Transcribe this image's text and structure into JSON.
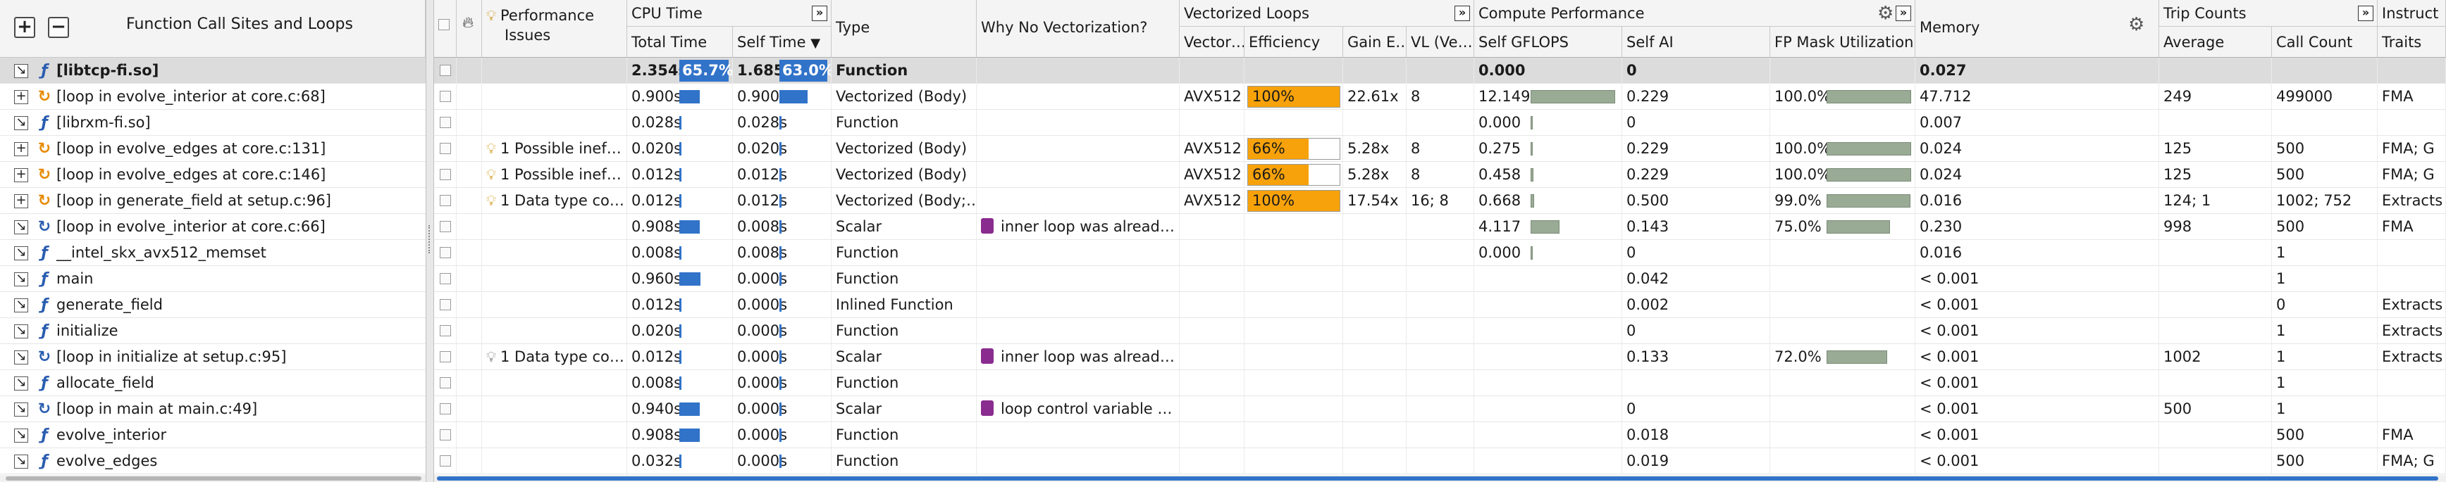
{
  "left_pane": {
    "title": "Function Call Sites and Loops",
    "expand_all": "+",
    "collapse_all": "−",
    "rows": [
      {
        "toggle": "↘",
        "icon": "function",
        "name": "[libtcp-fi.so]",
        "selected": true
      },
      {
        "toggle": "+",
        "icon": "vectorized-loop",
        "name": "[loop in evolve_interior at core.c:68]"
      },
      {
        "toggle": "↘",
        "icon": "function",
        "name": "[librxm-fi.so]"
      },
      {
        "toggle": "+",
        "icon": "vectorized-loop",
        "name": "[loop in evolve_edges at core.c:131]"
      },
      {
        "toggle": "+",
        "icon": "vectorized-loop",
        "name": "[loop in evolve_edges at core.c:146]"
      },
      {
        "toggle": "+",
        "icon": "vectorized-loop",
        "name": "[loop in generate_field at setup.c:96]"
      },
      {
        "toggle": "↘",
        "icon": "scalar-loop",
        "name": "[loop in evolve_interior at core.c:66]"
      },
      {
        "toggle": "↘",
        "icon": "function",
        "name": "__intel_skx_avx512_memset"
      },
      {
        "toggle": "↘",
        "icon": "function",
        "name": "main"
      },
      {
        "toggle": "↘",
        "icon": "function",
        "name": "generate_field"
      },
      {
        "toggle": "↘",
        "icon": "function",
        "name": "initialize"
      },
      {
        "toggle": "↘",
        "icon": "scalar-loop",
        "name": "[loop in initialize at setup.c:95]"
      },
      {
        "toggle": "↘",
        "icon": "function",
        "name": "allocate_field"
      },
      {
        "toggle": "↘",
        "icon": "scalar-loop",
        "name": "[loop in main at main.c:49]"
      },
      {
        "toggle": "↘",
        "icon": "function",
        "name": "evolve_interior"
      },
      {
        "toggle": "↘",
        "icon": "function",
        "name": "evolve_edges"
      }
    ]
  },
  "header": {
    "perf_issues": "Performance Issues",
    "perf_issues_l1": "Performance",
    "perf_issues_l2": "Issues",
    "cpu_time": "CPU Time",
    "total_time": "Total Time",
    "self_time": "Self Time",
    "type": "Type",
    "why_no_vec": "Why No Vectorization?",
    "vectorized_loops": "Vectorized Loops",
    "vector_isa": "Vector…",
    "efficiency": "Efficiency",
    "gain": "Gain E…",
    "vl": "VL (Ve…",
    "compute_perf": "Compute Performance",
    "self_gflops": "Self GFLOPS",
    "self_ai": "Self AI",
    "fp_mask": "FP Mask Utilization",
    "memory": "Memory",
    "trip_counts": "Trip Counts",
    "average": "Average",
    "call_count": "Call Count",
    "instruct": "Instruct",
    "traits": "Traits",
    "expand_glyph": "»",
    "sort_glyph": "▼"
  },
  "rows": [
    {
      "perf": "",
      "perf_icon": "",
      "total": "2.354s",
      "total_pct": "65.7%",
      "self": "1.685s",
      "self_pct": "63.0%",
      "type": "Function",
      "why": "",
      "isa": "",
      "eff": "",
      "eff_frac": 0,
      "gain": "",
      "vl": "",
      "gflops": "0.000",
      "gflops_frac": 0,
      "ai": "0",
      "fpmask": "",
      "fpmask_frac": 0,
      "mem": "0.027",
      "avg": "",
      "calls": "",
      "traits": ""
    },
    {
      "perf": "",
      "perf_icon": "",
      "total": "0.900s",
      "total_frac": 0.38,
      "self": "0.900s",
      "self_frac": 0.53,
      "type": "Vectorized (Body)",
      "why": "",
      "isa": "AVX512",
      "eff": "100%",
      "eff_frac": 1.0,
      "gain": "22.61x",
      "vl": "8",
      "gflops": "12.149",
      "gflops_frac": 1.0,
      "ai": "0.229",
      "fpmask": "100.0%",
      "fpmask_frac": 1.0,
      "mem": "47.712",
      "avg": "249",
      "calls": "499000",
      "traits": "FMA"
    },
    {
      "perf": "",
      "perf_icon": "",
      "total": "0.028s",
      "total_frac": 0.01,
      "self": "0.028s",
      "self_frac": 0.02,
      "type": "Function",
      "why": "",
      "isa": "",
      "eff": "",
      "eff_frac": 0,
      "gain": "",
      "vl": "",
      "gflops": "0.000",
      "gflops_frac": 0.01,
      "ai": "0",
      "fpmask": "",
      "fpmask_frac": 0,
      "mem": "0.007",
      "avg": "",
      "calls": "",
      "traits": ""
    },
    {
      "perf": "1 Possible inef…",
      "perf_icon": "bulb",
      "total": "0.020s",
      "total_frac": 0.01,
      "self": "0.020s",
      "self_frac": 0.01,
      "type": "Vectorized (Body)",
      "why": "",
      "isa": "AVX512",
      "eff": "66%",
      "eff_frac": 0.66,
      "gain": "5.28x",
      "vl": "8",
      "gflops": "0.275",
      "gflops_frac": 0.02,
      "ai": "0.229",
      "fpmask": "100.0%",
      "fpmask_frac": 1.0,
      "mem": "0.024",
      "avg": "125",
      "calls": "500",
      "traits": "FMA; G"
    },
    {
      "perf": "1 Possible inef…",
      "perf_icon": "bulb",
      "total": "0.012s",
      "total_frac": 0.01,
      "self": "0.012s",
      "self_frac": 0.01,
      "type": "Vectorized (Body)",
      "why": "",
      "isa": "AVX512",
      "eff": "66%",
      "eff_frac": 0.66,
      "gain": "5.28x",
      "vl": "8",
      "gflops": "0.458",
      "gflops_frac": 0.03,
      "ai": "0.229",
      "fpmask": "100.0%",
      "fpmask_frac": 1.0,
      "mem": "0.024",
      "avg": "125",
      "calls": "500",
      "traits": "FMA; G"
    },
    {
      "perf": "1 Data type co…",
      "perf_icon": "bulb",
      "total": "0.012s",
      "total_frac": 0.01,
      "self": "0.012s",
      "self_frac": 0.01,
      "type": "Vectorized (Body;…",
      "why": "",
      "isa": "AVX512",
      "eff": "100%",
      "eff_frac": 1.0,
      "gain": "17.54x",
      "vl": "16; 8",
      "gflops": "0.668",
      "gflops_frac": 0.04,
      "ai": "0.500",
      "fpmask": "99.0%",
      "fpmask_frac": 0.99,
      "mem": "0.016",
      "avg": "124; 1",
      "calls": "1002; 752",
      "traits": "Extracts"
    },
    {
      "perf": "",
      "perf_icon": "",
      "total": "0.908s",
      "total_frac": 0.38,
      "self": "0.008s",
      "self_frac": 0.01,
      "type": "Scalar",
      "why": "inner loop was alread…",
      "isa": "",
      "eff": "",
      "eff_frac": 0,
      "gain": "",
      "vl": "",
      "gflops": "4.117",
      "gflops_frac": 0.34,
      "ai": "0.143",
      "fpmask": "75.0%",
      "fpmask_frac": 0.75,
      "mem": "0.230",
      "avg": "998",
      "calls": "500",
      "traits": "FMA"
    },
    {
      "perf": "",
      "perf_icon": "",
      "total": "0.008s",
      "total_frac": 0.01,
      "self": "0.008s",
      "self_frac": 0.01,
      "type": "Function",
      "why": "",
      "isa": "",
      "eff": "",
      "eff_frac": 0,
      "gain": "",
      "vl": "",
      "gflops": "0.000",
      "gflops_frac": 0.01,
      "ai": "0",
      "fpmask": "",
      "fpmask_frac": 0,
      "mem": "0.016",
      "avg": "",
      "calls": "1",
      "traits": ""
    },
    {
      "perf": "",
      "perf_icon": "",
      "total": "0.960s",
      "total_frac": 0.4,
      "self": "0.000s",
      "self_frac": 0.01,
      "type": "Function",
      "why": "",
      "isa": "",
      "eff": "",
      "eff_frac": 0,
      "gain": "",
      "vl": "",
      "gflops": "",
      "gflops_frac": 0,
      "ai": "0.042",
      "fpmask": "",
      "fpmask_frac": 0,
      "mem": "< 0.001",
      "avg": "",
      "calls": "1",
      "traits": ""
    },
    {
      "perf": "",
      "perf_icon": "",
      "total": "0.012s",
      "total_frac": 0.01,
      "self": "0.000s",
      "self_frac": 0.01,
      "type": "Inlined Function",
      "why": "",
      "isa": "",
      "eff": "",
      "eff_frac": 0,
      "gain": "",
      "vl": "",
      "gflops": "",
      "gflops_frac": 0,
      "ai": "0.002",
      "fpmask": "",
      "fpmask_frac": 0,
      "mem": "< 0.001",
      "avg": "",
      "calls": "0",
      "traits": "Extracts"
    },
    {
      "perf": "",
      "perf_icon": "",
      "total": "0.020s",
      "total_frac": 0.01,
      "self": "0.000s",
      "self_frac": 0.01,
      "type": "Function",
      "why": "",
      "isa": "",
      "eff": "",
      "eff_frac": 0,
      "gain": "",
      "vl": "",
      "gflops": "",
      "gflops_frac": 0,
      "ai": "0",
      "fpmask": "",
      "fpmask_frac": 0,
      "mem": "< 0.001",
      "avg": "",
      "calls": "1",
      "traits": "Extracts"
    },
    {
      "perf": "1 Data type co…",
      "perf_icon": "bulb-grey",
      "total": "0.012s",
      "total_frac": 0.01,
      "self": "0.000s",
      "self_frac": 0.01,
      "type": "Scalar",
      "why": "inner loop was alread…",
      "isa": "",
      "eff": "",
      "eff_frac": 0,
      "gain": "",
      "vl": "",
      "gflops": "",
      "gflops_frac": 0,
      "ai": "0.133",
      "fpmask": "72.0%",
      "fpmask_frac": 0.72,
      "mem": "< 0.001",
      "avg": "1002",
      "calls": "1",
      "traits": "Extracts"
    },
    {
      "perf": "",
      "perf_icon": "",
      "total": "0.008s",
      "total_frac": 0.01,
      "self": "0.000s",
      "self_frac": 0.01,
      "type": "Function",
      "why": "",
      "isa": "",
      "eff": "",
      "eff_frac": 0,
      "gain": "",
      "vl": "",
      "gflops": "",
      "gflops_frac": 0,
      "ai": "",
      "fpmask": "",
      "fpmask_frac": 0,
      "mem": "< 0.001",
      "avg": "",
      "calls": "1",
      "traits": ""
    },
    {
      "perf": "",
      "perf_icon": "",
      "total": "0.940s",
      "total_frac": 0.39,
      "self": "0.000s",
      "self_frac": 0.01,
      "type": "Scalar",
      "why": "loop control variable …",
      "isa": "",
      "eff": "",
      "eff_frac": 0,
      "gain": "",
      "vl": "",
      "gflops": "",
      "gflops_frac": 0,
      "ai": "0",
      "fpmask": "",
      "fpmask_frac": 0,
      "mem": "< 0.001",
      "avg": "500",
      "calls": "1",
      "traits": ""
    },
    {
      "perf": "",
      "perf_icon": "",
      "total": "0.908s",
      "total_frac": 0.38,
      "self": "0.000s",
      "self_frac": 0.01,
      "type": "Function",
      "why": "",
      "isa": "",
      "eff": "",
      "eff_frac": 0,
      "gain": "",
      "vl": "",
      "gflops": "",
      "gflops_frac": 0,
      "ai": "0.018",
      "fpmask": "",
      "fpmask_frac": 0,
      "mem": "< 0.001",
      "avg": "",
      "calls": "500",
      "traits": "FMA"
    },
    {
      "perf": "",
      "perf_icon": "",
      "total": "0.032s",
      "total_frac": 0.01,
      "self": "0.000s",
      "self_frac": 0.01,
      "type": "Function",
      "why": "",
      "isa": "",
      "eff": "",
      "eff_frac": 0,
      "gain": "",
      "vl": "",
      "gflops": "",
      "gflops_frac": 0,
      "ai": "0.019",
      "fpmask": "",
      "fpmask_frac": 0,
      "mem": "< 0.001",
      "avg": "",
      "calls": "500",
      "traits": "FMA; G"
    }
  ],
  "colors": {
    "accent_blue": "#3173c9",
    "efficiency_orange": "#f7a20a",
    "gflops_green": "#99aa95",
    "selected_row": "#dcdcdc",
    "why_icon": "#8a2c8f"
  }
}
